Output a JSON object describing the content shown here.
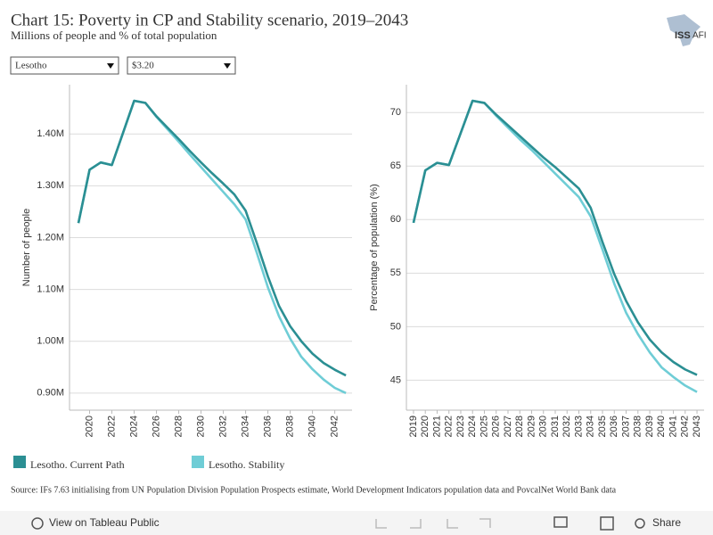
{
  "header": {
    "title": "Chart 15: Poverty in CP and Stability scenario, 2019–2043",
    "subtitle": "Millions of people and % of total population",
    "logo": [
      "ISS",
      "AFI"
    ]
  },
  "filters": [
    "Lesotho",
    "$3.20"
  ],
  "chart_data": [
    {
      "type": "line",
      "y_label": "Number of people",
      "x": [
        2019,
        2020,
        2021,
        2022,
        2023,
        2024,
        2025,
        2026,
        2027,
        2028,
        2029,
        2030,
        2031,
        2032,
        2033,
        2034,
        2035,
        2036,
        2037,
        2038,
        2039,
        2040,
        2041,
        2042,
        2043
      ],
      "xlim": [
        2018.2,
        2043.55
      ],
      "xticks": [
        2020,
        2022,
        2024,
        2026,
        2028,
        2030,
        2032,
        2034,
        2036,
        2038,
        2040,
        2042
      ],
      "ylim": [
        867000,
        1495000
      ],
      "yticks": [
        {
          "value": 900000,
          "label": "0.90M"
        },
        {
          "value": 1000000,
          "label": "1.00M"
        },
        {
          "value": 1100000,
          "label": "1.10M"
        },
        {
          "value": 1200000,
          "label": "1.20M"
        },
        {
          "value": 1300000,
          "label": "1.30M"
        },
        {
          "value": 1400000,
          "label": "1.40M"
        }
      ],
      "grid": true,
      "series": [
        {
          "name": "Lesotho. Current Path",
          "color": "#2b8f93",
          "values": [
            1228000,
            1331000,
            1345000,
            1340000,
            1402000,
            1464000,
            1460000,
            1434000,
            1412000,
            1390000,
            1367000,
            1345000,
            1324000,
            1304000,
            1283000,
            1252000,
            1190000,
            1125000,
            1068000,
            1029000,
            1000000,
            976000,
            958000,
            945000,
            934000
          ]
        },
        {
          "name": "Lesotho. Stability",
          "color": "#6fcdd6",
          "values": [
            1228000,
            1331000,
            1345000,
            1340000,
            1402000,
            1464000,
            1460000,
            1433000,
            1409000,
            1385000,
            1360000,
            1336000,
            1312000,
            1288000,
            1264000,
            1235000,
            1171000,
            1104000,
            1048000,
            1005000,
            970000,
            946000,
            926000,
            910000,
            900000
          ]
        }
      ]
    },
    {
      "type": "line",
      "y_label": "Percentage of population (%)",
      "x": [
        2019,
        2020,
        2021,
        2022,
        2023,
        2024,
        2025,
        2026,
        2027,
        2028,
        2029,
        2030,
        2031,
        2032,
        2033,
        2034,
        2035,
        2036,
        2037,
        2038,
        2039,
        2040,
        2041,
        2042,
        2043
      ],
      "xlim": [
        2018.4,
        2043.6
      ],
      "xticks": [
        2019,
        2020,
        2021,
        2022,
        2023,
        2024,
        2025,
        2026,
        2027,
        2028,
        2029,
        2030,
        2031,
        2032,
        2033,
        2034,
        2035,
        2036,
        2037,
        2038,
        2039,
        2040,
        2041,
        2042,
        2043
      ],
      "ylim": [
        42.2,
        72.6
      ],
      "yticks": [
        45,
        50,
        55,
        60,
        65,
        70
      ],
      "grid": true,
      "series": [
        {
          "color": "#2b8f93",
          "values": [
            59.7,
            64.6,
            65.3,
            65.1,
            68.1,
            71.1,
            70.9,
            69.8,
            68.8,
            67.8,
            66.8,
            65.8,
            64.9,
            63.9,
            62.9,
            61.1,
            57.9,
            54.9,
            52.4,
            50.4,
            48.8,
            47.6,
            46.7,
            46.0,
            45.5
          ]
        },
        {
          "color": "#6fcdd6",
          "values": [
            59.7,
            64.6,
            65.3,
            65.1,
            68.1,
            71.1,
            70.9,
            69.7,
            68.6,
            67.5,
            66.5,
            65.4,
            64.3,
            63.2,
            62.1,
            60.3,
            57.2,
            54.0,
            51.3,
            49.3,
            47.6,
            46.2,
            45.3,
            44.5,
            43.9
          ]
        }
      ]
    }
  ],
  "source": "Source: IFs 7.63 initialising from UN Population Division Population Prospects estimate, World Development Indicators population data and PovcalNet World Bank data",
  "toolbar": {
    "view": "View on Tableau Public",
    "share": "Share"
  }
}
